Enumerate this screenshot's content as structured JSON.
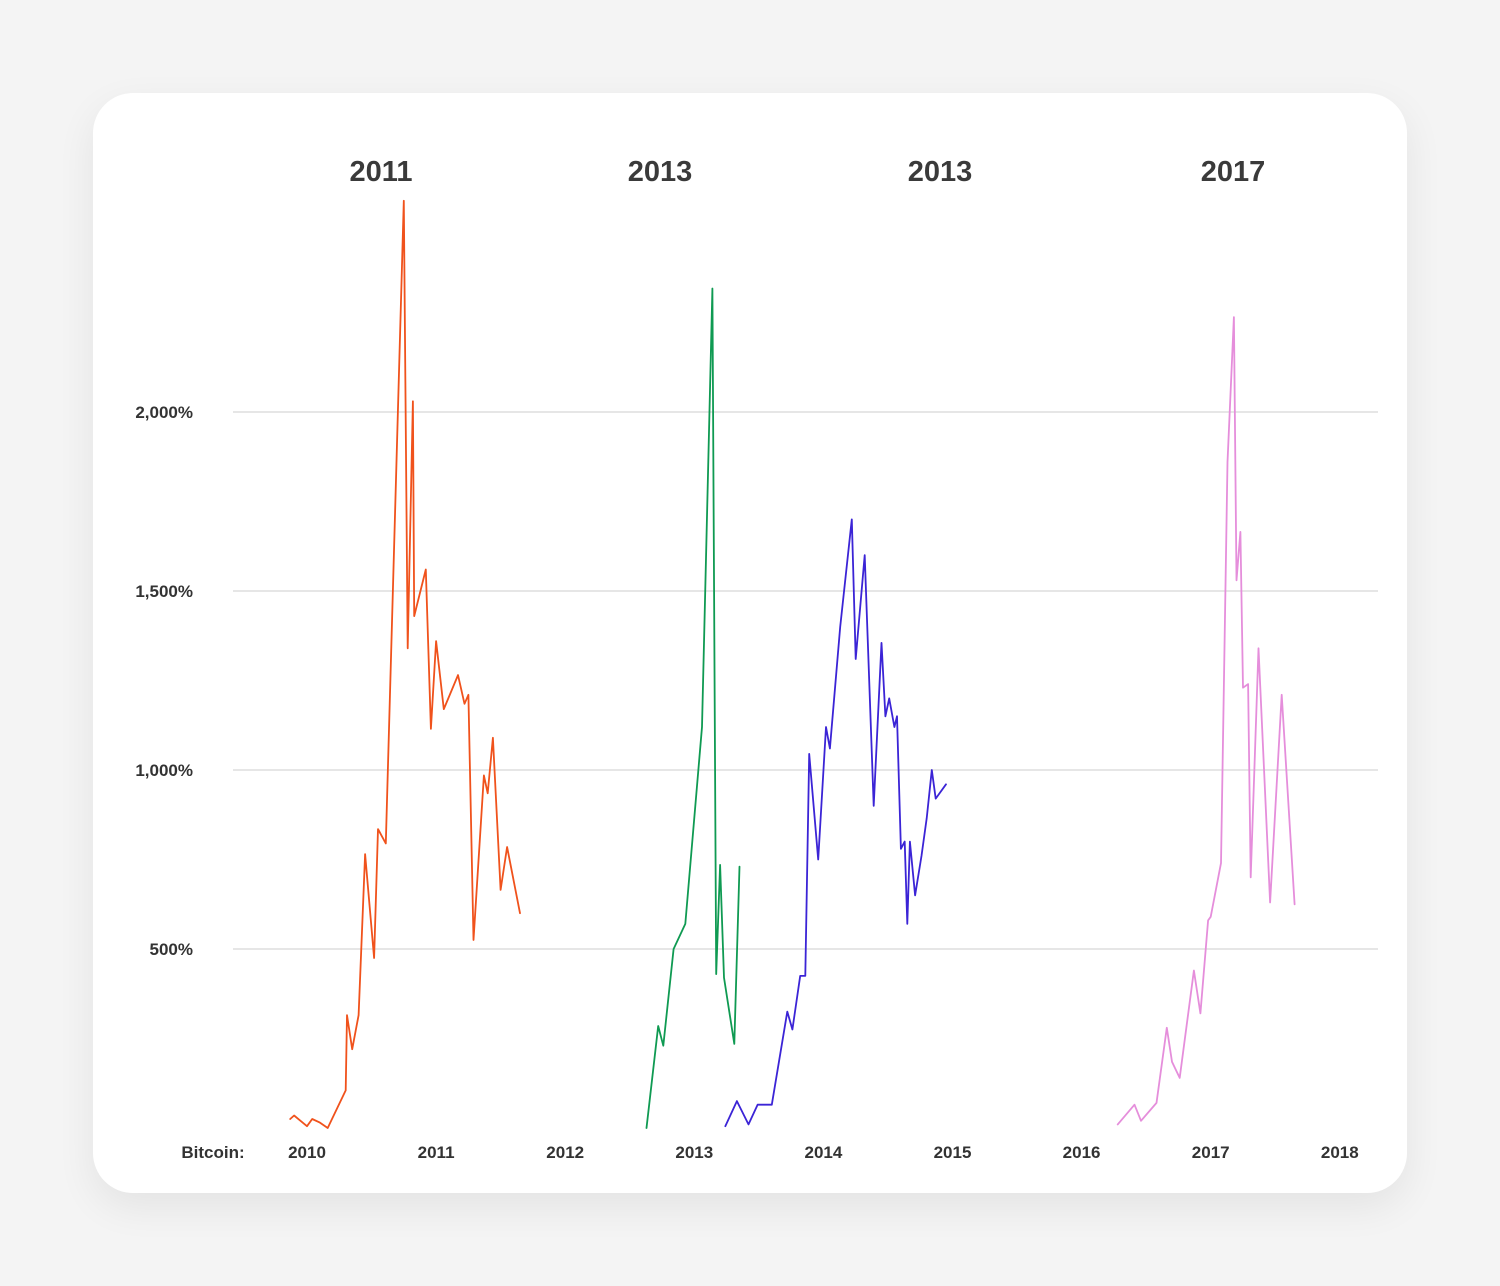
{
  "chart_data": {
    "type": "line",
    "asset_label": "Bitcoin:",
    "ylim": [
      0,
      2600
    ],
    "xlim": [
      2009.92,
      2018.25
    ],
    "grid": true,
    "y_ticks": [
      {
        "value": 500,
        "label": "500%"
      },
      {
        "value": 1000,
        "label": "1,000%"
      },
      {
        "value": 1500,
        "label": "1,500%"
      },
      {
        "value": 2000,
        "label": "2,000%"
      }
    ],
    "x_ticks": [
      {
        "value": 2010,
        "label": "2010"
      },
      {
        "value": 2011,
        "label": "2011"
      },
      {
        "value": 2012,
        "label": "2012"
      },
      {
        "value": 2013,
        "label": "2013"
      },
      {
        "value": 2014,
        "label": "2014"
      },
      {
        "value": 2015,
        "label": "2015"
      },
      {
        "value": 2016,
        "label": "2016"
      },
      {
        "value": 2017,
        "label": "2017"
      },
      {
        "value": 2018,
        "label": "2018"
      }
    ],
    "series": [
      {
        "title": "2011",
        "color": "#f0521c",
        "points": [
          [
            2009.87,
            25
          ],
          [
            2009.9,
            35
          ],
          [
            2009.95,
            20
          ],
          [
            2010.0,
            5
          ],
          [
            2010.04,
            25
          ],
          [
            2010.1,
            15
          ],
          [
            2010.16,
            0
          ],
          [
            2010.3,
            105
          ],
          [
            2010.31,
            315
          ],
          [
            2010.35,
            220
          ],
          [
            2010.4,
            315
          ],
          [
            2010.45,
            765
          ],
          [
            2010.52,
            475
          ],
          [
            2010.55,
            835
          ],
          [
            2010.61,
            795
          ],
          [
            2010.75,
            2590
          ],
          [
            2010.78,
            1340
          ],
          [
            2010.82,
            2030
          ],
          [
            2010.83,
            1430
          ],
          [
            2010.92,
            1560
          ],
          [
            2010.96,
            1115
          ],
          [
            2011.0,
            1360
          ],
          [
            2011.06,
            1170
          ],
          [
            2011.17,
            1265
          ],
          [
            2011.22,
            1185
          ],
          [
            2011.25,
            1210
          ],
          [
            2011.29,
            525
          ],
          [
            2011.37,
            985
          ],
          [
            2011.4,
            935
          ],
          [
            2011.44,
            1090
          ],
          [
            2011.5,
            665
          ],
          [
            2011.55,
            785
          ],
          [
            2011.65,
            600
          ]
        ]
      },
      {
        "title": "2013",
        "color": "#0f9a52",
        "points": [
          [
            2012.63,
            0
          ],
          [
            2012.72,
            285
          ],
          [
            2012.76,
            230
          ],
          [
            2012.84,
            500
          ],
          [
            2012.93,
            570
          ],
          [
            2013.06,
            1120
          ],
          [
            2013.14,
            2345
          ],
          [
            2013.17,
            430
          ],
          [
            2013.2,
            735
          ],
          [
            2013.23,
            420
          ],
          [
            2013.31,
            235
          ],
          [
            2013.35,
            730
          ]
        ]
      },
      {
        "title": "2013",
        "color": "#3b24d6",
        "points": [
          [
            2013.24,
            5
          ],
          [
            2013.33,
            75
          ],
          [
            2013.42,
            10
          ],
          [
            2013.49,
            65
          ],
          [
            2013.6,
            65
          ],
          [
            2013.72,
            325
          ],
          [
            2013.76,
            275
          ],
          [
            2013.82,
            425
          ],
          [
            2013.86,
            425
          ],
          [
            2013.89,
            1045
          ],
          [
            2013.96,
            750
          ],
          [
            2014.02,
            1120
          ],
          [
            2014.05,
            1060
          ],
          [
            2014.13,
            1400
          ],
          [
            2014.22,
            1700
          ],
          [
            2014.25,
            1310
          ],
          [
            2014.32,
            1600
          ],
          [
            2014.39,
            900
          ],
          [
            2014.45,
            1355
          ],
          [
            2014.48,
            1150
          ],
          [
            2014.51,
            1200
          ],
          [
            2014.55,
            1120
          ],
          [
            2014.57,
            1150
          ],
          [
            2014.6,
            780
          ],
          [
            2014.63,
            800
          ],
          [
            2014.65,
            570
          ],
          [
            2014.67,
            800
          ],
          [
            2014.71,
            650
          ],
          [
            2014.76,
            760
          ],
          [
            2014.8,
            865
          ],
          [
            2014.84,
            1000
          ],
          [
            2014.87,
            920
          ],
          [
            2014.95,
            960
          ]
        ]
      },
      {
        "title": "2017",
        "color": "#e58edb",
        "points": [
          [
            2016.28,
            10
          ],
          [
            2016.41,
            65
          ],
          [
            2016.46,
            20
          ],
          [
            2016.58,
            70
          ],
          [
            2016.66,
            280
          ],
          [
            2016.7,
            185
          ],
          [
            2016.76,
            140
          ],
          [
            2016.87,
            440
          ],
          [
            2016.92,
            320
          ],
          [
            2016.98,
            580
          ],
          [
            2017.0,
            590
          ],
          [
            2017.08,
            740
          ],
          [
            2017.13,
            1860
          ],
          [
            2017.18,
            2265
          ],
          [
            2017.2,
            1530
          ],
          [
            2017.23,
            1665
          ],
          [
            2017.25,
            1230
          ],
          [
            2017.29,
            1240
          ],
          [
            2017.31,
            700
          ],
          [
            2017.37,
            1340
          ],
          [
            2017.46,
            630
          ],
          [
            2017.55,
            1210
          ],
          [
            2017.65,
            625
          ]
        ]
      }
    ]
  }
}
